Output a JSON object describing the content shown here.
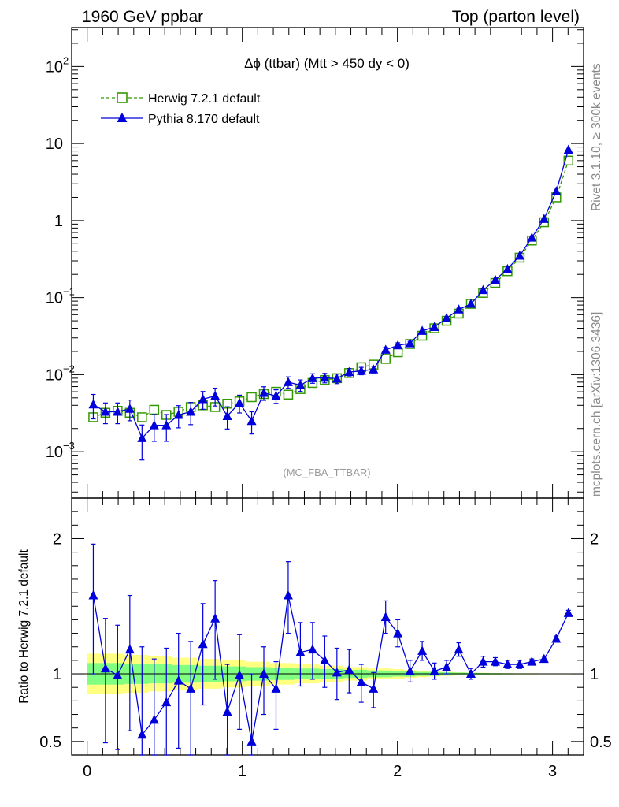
{
  "header": {
    "left": "1960 GeV ppbar",
    "right": "Top (parton level)"
  },
  "side_labels": {
    "rivet": "Rivet 3.1.10, ≥ 300k events",
    "mcplots": "mcplots.cern.ch [arXiv:1306.3436]"
  },
  "colors": {
    "herwig": "#339900",
    "pythia": "#0000dd",
    "band_outer": "#ffff80",
    "band_inner": "#80ff80"
  },
  "chart_data": [
    {
      "type": "line",
      "title": "Δϕ (ttbar) (Mtt > 450 dy < 0)",
      "watermark": "(MC_FBA_TTBAR)",
      "yscale": "log",
      "ylim": [
        0.00025,
        320
      ],
      "xlim": [
        -0.1,
        3.2
      ],
      "ytick_labels": [
        {
          "value": 100,
          "base": "10",
          "exp": "2"
        },
        {
          "value": 10,
          "base": "10",
          "exp": ""
        },
        {
          "value": 1,
          "base": "1",
          "exp": ""
        },
        {
          "value": 0.1,
          "base": "10",
          "exp": "−1"
        },
        {
          "value": 0.01,
          "base": "10",
          "exp": "−2"
        },
        {
          "value": 0.001,
          "base": "10",
          "exp": "−3"
        }
      ],
      "legend": [
        "Herwig 7.2.1 default",
        "Pythia 8.170 default"
      ],
      "legend_position": "top-left",
      "x": [
        0.0393,
        0.1178,
        0.1963,
        0.2749,
        0.3534,
        0.432,
        0.5105,
        0.589,
        0.6676,
        0.7461,
        0.8247,
        0.9032,
        0.9817,
        1.0603,
        1.1388,
        1.2174,
        1.2959,
        1.3744,
        1.453,
        1.5315,
        1.6101,
        1.6886,
        1.7671,
        1.8457,
        1.9242,
        2.0028,
        2.0813,
        2.1598,
        2.2384,
        2.3169,
        2.3955,
        2.474,
        2.5525,
        2.6311,
        2.7096,
        2.7882,
        2.8667,
        2.9452,
        3.0238,
        3.1023
      ],
      "series": [
        {
          "name": "Herwig 7.2.1 default",
          "values": [
            0.0028,
            0.0032,
            0.0034,
            0.0032,
            0.0028,
            0.0035,
            0.003,
            0.0033,
            0.0038,
            0.004,
            0.0038,
            0.0042,
            0.0045,
            0.0051,
            0.0056,
            0.006,
            0.0055,
            0.0065,
            0.0078,
            0.0085,
            0.009,
            0.0105,
            0.0125,
            0.0135,
            0.016,
            0.0195,
            0.025,
            0.032,
            0.04,
            0.05,
            0.062,
            0.083,
            0.115,
            0.155,
            0.22,
            0.33,
            0.55,
            0.95,
            2.0,
            6.0
          ]
        },
        {
          "name": "Pythia 8.170 default",
          "values": [
            0.0041,
            0.0033,
            0.0033,
            0.0036,
            0.0015,
            0.0022,
            0.0022,
            0.003,
            0.0033,
            0.0048,
            0.0053,
            0.0029,
            0.0043,
            0.0025,
            0.0058,
            0.0053,
            0.008,
            0.0073,
            0.009,
            0.0091,
            0.0089,
            0.0108,
            0.0112,
            0.0117,
            0.021,
            0.024,
            0.0255,
            0.037,
            0.0415,
            0.054,
            0.07,
            0.083,
            0.125,
            0.17,
            0.235,
            0.35,
            0.6,
            1.05,
            2.4,
            8.3
          ],
          "errors_rel": [
            0.35,
            0.3,
            0.3,
            0.3,
            0.48,
            0.38,
            0.38,
            0.32,
            0.32,
            0.26,
            0.26,
            0.32,
            0.26,
            0.32,
            0.2,
            0.2,
            0.17,
            0.17,
            0.14,
            0.14,
            0.14,
            0.11,
            0.11,
            0.1,
            0.08,
            0.08,
            0.06,
            0.06,
            0.05,
            0.04,
            0.035,
            0.03,
            0.03,
            0.025,
            0.02,
            0.02,
            0.02,
            0.015,
            0.01,
            0.01
          ]
        }
      ]
    },
    {
      "type": "line",
      "ylabel": "Ratio to Herwig 7.2.1 default",
      "ylim": [
        0.4,
        2.3
      ],
      "xlim": [
        -0.1,
        3.2
      ],
      "yticks": [
        0.5,
        1,
        2
      ],
      "ytick_labels": [
        "0.5",
        "1",
        "2"
      ],
      "xticks": [
        0,
        1,
        2,
        3
      ],
      "xtick_labels": [
        "0",
        "1",
        "2",
        "3"
      ],
      "x": [
        0.0393,
        0.1178,
        0.1963,
        0.2749,
        0.3534,
        0.432,
        0.5105,
        0.589,
        0.6676,
        0.7461,
        0.8247,
        0.9032,
        0.9817,
        1.0603,
        1.1388,
        1.2174,
        1.2959,
        1.3744,
        1.453,
        1.5315,
        1.6101,
        1.6886,
        1.7671,
        1.8457,
        1.9242,
        2.0028,
        2.0813,
        2.1598,
        2.2384,
        2.3169,
        2.3955,
        2.474,
        2.5525,
        2.6311,
        2.7096,
        2.7882,
        2.8667,
        2.9452,
        3.0238,
        3.1023
      ],
      "band_inner_rel": [
        0.08,
        0.08,
        0.08,
        0.075,
        0.075,
        0.07,
        0.07,
        0.065,
        0.065,
        0.06,
        0.06,
        0.055,
        0.055,
        0.05,
        0.05,
        0.045,
        0.045,
        0.04,
        0.04,
        0.035,
        0.035,
        0.03,
        0.03,
        0.025,
        0.025,
        0.02,
        0.02,
        0.015,
        0.015,
        0.012,
        0.01,
        0.008,
        0.006,
        0.005,
        0.004,
        0.003,
        0.003,
        0.002,
        0.002,
        0.002
      ],
      "band_outer_rel": [
        0.15,
        0.15,
        0.15,
        0.14,
        0.14,
        0.13,
        0.13,
        0.12,
        0.12,
        0.11,
        0.11,
        0.1,
        0.1,
        0.09,
        0.09,
        0.08,
        0.08,
        0.07,
        0.07,
        0.06,
        0.06,
        0.05,
        0.05,
        0.04,
        0.04,
        0.035,
        0.03,
        0.025,
        0.02,
        0.015,
        0.012,
        0.01,
        0.008,
        0.006,
        0.005,
        0.004,
        0.004,
        0.003,
        0.003,
        0.003
      ],
      "series": [
        {
          "name": "Pythia 8.170 default",
          "values": [
            1.58,
            1.04,
            0.99,
            1.18,
            0.55,
            0.66,
            0.79,
            0.95,
            0.89,
            1.22,
            1.41,
            0.72,
            0.99,
            0.5,
            1.0,
            0.89,
            1.58,
            1.16,
            1.18,
            1.1,
            1.01,
            1.03,
            0.94,
            0.89,
            1.42,
            1.3,
            1.02,
            1.17,
            1.02,
            1.05,
            1.18,
            1.0,
            1.09,
            1.09,
            1.07,
            1.07,
            1.09,
            1.11,
            1.26,
            1.45
          ],
          "err_low": [
            0.58,
            0.55,
            0.55,
            0.6,
            0.6,
            0.6,
            0.55,
            0.5,
            0.5,
            0.45,
            0.45,
            0.4,
            0.4,
            0.4,
            0.3,
            0.3,
            0.28,
            0.25,
            0.22,
            0.2,
            0.2,
            0.17,
            0.15,
            0.14,
            0.12,
            0.1,
            0.08,
            0.07,
            0.06,
            0.05,
            0.05,
            0.04,
            0.04,
            0.03,
            0.03,
            0.03,
            0.02,
            0.02,
            0.02,
            0.02
          ],
          "err_high": [
            0.38,
            0.37,
            0.37,
            0.4,
            0.65,
            0.45,
            0.4,
            0.35,
            0.35,
            0.3,
            0.28,
            0.35,
            0.3,
            0.5,
            0.2,
            0.2,
            0.25,
            0.22,
            0.2,
            0.18,
            0.18,
            0.15,
            0.13,
            0.12,
            0.12,
            0.1,
            0.08,
            0.07,
            0.06,
            0.05,
            0.05,
            0.04,
            0.04,
            0.03,
            0.03,
            0.03,
            0.02,
            0.02,
            0.02,
            0.02
          ]
        }
      ]
    }
  ]
}
